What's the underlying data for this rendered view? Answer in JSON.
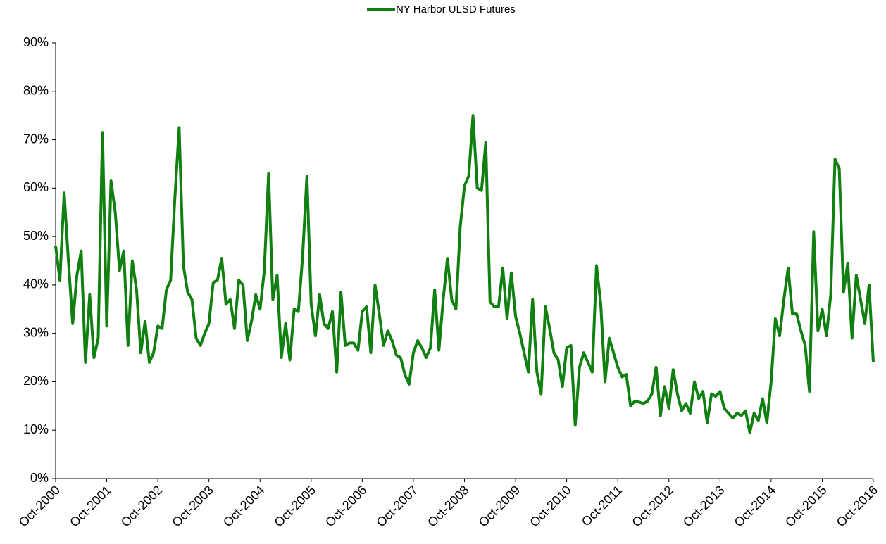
{
  "chart_data": {
    "type": "line",
    "categories": [
      "Oct-2000",
      null,
      null,
      null,
      null,
      null,
      null,
      null,
      null,
      null,
      null,
      null,
      "Oct-2001",
      null,
      null,
      null,
      null,
      null,
      null,
      null,
      null,
      null,
      null,
      null,
      "Oct-2002",
      null,
      null,
      null,
      null,
      null,
      null,
      null,
      null,
      null,
      null,
      null,
      "Oct-2003",
      null,
      null,
      null,
      null,
      null,
      null,
      null,
      null,
      null,
      null,
      null,
      "Oct-2004",
      null,
      null,
      null,
      null,
      null,
      null,
      null,
      null,
      null,
      null,
      null,
      "Oct-2005",
      null,
      null,
      null,
      null,
      null,
      null,
      null,
      null,
      null,
      null,
      null,
      "Oct-2006",
      null,
      null,
      null,
      null,
      null,
      null,
      null,
      null,
      null,
      null,
      null,
      "Oct-2007",
      null,
      null,
      null,
      null,
      null,
      null,
      null,
      null,
      null,
      null,
      null,
      "Oct-2008",
      null,
      null,
      null,
      null,
      null,
      null,
      null,
      null,
      null,
      null,
      null,
      "Oct-2009",
      null,
      null,
      null,
      null,
      null,
      null,
      null,
      null,
      null,
      null,
      null,
      "Oct-2010",
      null,
      null,
      null,
      null,
      null,
      null,
      null,
      null,
      null,
      null,
      null,
      "Oct-2011",
      null,
      null,
      null,
      null,
      null,
      null,
      null,
      null,
      null,
      null,
      null,
      "Oct-2012",
      null,
      null,
      null,
      null,
      null,
      null,
      null,
      null,
      null,
      null,
      null,
      "Oct-2013",
      null,
      null,
      null,
      null,
      null,
      null,
      null,
      null,
      null,
      null,
      null,
      "Oct-2014",
      null,
      null,
      null,
      null,
      null,
      null,
      null,
      null,
      null,
      null,
      null,
      "Oct-2015",
      null,
      null,
      null,
      null,
      null,
      null,
      null,
      null,
      null,
      null,
      null,
      "Oct-2016"
    ],
    "series": [
      {
        "name": "NY Harbor ULSD Futures",
        "color": "#108010",
        "values": [
          48,
          41,
          59,
          45,
          32,
          42,
          47,
          24,
          38,
          25,
          29,
          71.5,
          31.5,
          61.5,
          55,
          43,
          47,
          27.5,
          45,
          39,
          26,
          32.5,
          24,
          26,
          31.5,
          31,
          39,
          41,
          58,
          72.5,
          44,
          38.5,
          37,
          29,
          27.5,
          30,
          32,
          40.5,
          41,
          45.5,
          36,
          37,
          31,
          41,
          40,
          28.5,
          32.5,
          38,
          35,
          43,
          63,
          37,
          42,
          25,
          32,
          24.5,
          35,
          34.5,
          46,
          62.5,
          36,
          29.5,
          38,
          32,
          31,
          34.5,
          22,
          38.5,
          27.5,
          28,
          28,
          26.5,
          34.5,
          35.5,
          26,
          40,
          34,
          27.5,
          30.5,
          28.5,
          25.5,
          25,
          21.5,
          19.5,
          26,
          28.5,
          27,
          25,
          27,
          39,
          26.5,
          37,
          45.5,
          37,
          35,
          52,
          60.5,
          62.5,
          75,
          60,
          59.5,
          69.5,
          36.5,
          35.5,
          35.5,
          43.5,
          33,
          42.5,
          33.5,
          30,
          26,
          22,
          37,
          22,
          17.5,
          35.5,
          31,
          26,
          24.5,
          19,
          27,
          27.5,
          11,
          23,
          26,
          24,
          22,
          44,
          36,
          20,
          29,
          26,
          23,
          21,
          21.5,
          15,
          16,
          15.8,
          15.5,
          16,
          17.5,
          23,
          13,
          19,
          14.5,
          22.5,
          17.5,
          14,
          15.5,
          13.5,
          20,
          16.5,
          18,
          11.5,
          17.5,
          17,
          18,
          14.5,
          13.5,
          12.5,
          13.5,
          13,
          14,
          9.5,
          13.5,
          12,
          16.5,
          11.5,
          20,
          33,
          29.5,
          37,
          43.5,
          34,
          34,
          30.5,
          27.5,
          18,
          51,
          30.5,
          35,
          29.5,
          38,
          66,
          64,
          38.5,
          44.5,
          29,
          42,
          37,
          32,
          40,
          24
        ]
      }
    ],
    "ylim": [
      0,
      90
    ],
    "yticks": [
      {
        "value": 0,
        "label": "0%"
      },
      {
        "value": 10,
        "label": "10%"
      },
      {
        "value": 20,
        "label": "20%"
      },
      {
        "value": 30,
        "label": "30%"
      },
      {
        "value": 40,
        "label": "40%"
      },
      {
        "value": 50,
        "label": "50%"
      },
      {
        "value": 60,
        "label": "60%"
      },
      {
        "value": 70,
        "label": "70%"
      },
      {
        "value": 80,
        "label": "80%"
      },
      {
        "value": 90,
        "label": "90%"
      }
    ],
    "grid": false,
    "legend": "top"
  }
}
